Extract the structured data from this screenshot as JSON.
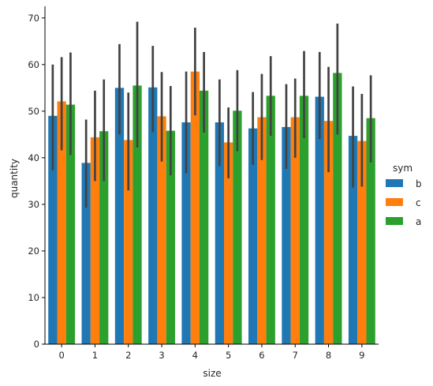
{
  "chart_data": {
    "type": "bar",
    "xlabel": "size",
    "ylabel": "quantity",
    "ylim": [
      0,
      72.5
    ],
    "yticks": [
      0,
      10,
      20,
      30,
      40,
      50,
      60,
      70
    ],
    "categories": [
      "0",
      "1",
      "2",
      "3",
      "4",
      "5",
      "6",
      "7",
      "8",
      "9"
    ],
    "legend": {
      "title": "sym",
      "placement": "right"
    },
    "grid": false,
    "series": [
      {
        "name": "b",
        "color": "#1f77b4",
        "values": [
          49.0,
          38.9,
          55.0,
          55.1,
          47.6,
          47.6,
          46.3,
          46.6,
          53.1,
          44.7
        ],
        "ci": [
          [
            37.3,
            60.0
          ],
          [
            29.3,
            48.2
          ],
          [
            45.0,
            64.4
          ],
          [
            45.5,
            64.0
          ],
          [
            36.7,
            58.5
          ],
          [
            38.2,
            56.8
          ],
          [
            38.5,
            54.1
          ],
          [
            37.6,
            55.8
          ],
          [
            44.0,
            62.7
          ],
          [
            33.6,
            55.3
          ]
        ]
      },
      {
        "name": "c",
        "color": "#ff7f0e",
        "values": [
          52.1,
          44.4,
          43.8,
          48.9,
          58.5,
          43.3,
          48.7,
          48.7,
          47.9,
          43.6
        ],
        "ci": [
          [
            41.6,
            61.6
          ],
          [
            35.0,
            54.4
          ],
          [
            33.0,
            54.0
          ],
          [
            39.2,
            58.4
          ],
          [
            49.1,
            67.9
          ],
          [
            35.6,
            50.8
          ],
          [
            39.5,
            58.0
          ],
          [
            40.0,
            57.0
          ],
          [
            36.9,
            59.5
          ],
          [
            33.8,
            53.7
          ]
        ]
      },
      {
        "name": "a",
        "color": "#2ca02c",
        "values": [
          51.4,
          45.7,
          55.5,
          45.8,
          54.4,
          50.1,
          53.3,
          53.3,
          58.2,
          48.5
        ],
        "ci": [
          [
            40.6,
            62.6
          ],
          [
            35.0,
            56.8
          ],
          [
            42.2,
            69.2
          ],
          [
            36.2,
            55.4
          ],
          [
            45.4,
            62.7
          ],
          [
            41.4,
            58.8
          ],
          [
            44.7,
            61.8
          ],
          [
            44.2,
            62.9
          ],
          [
            45.0,
            68.8
          ],
          [
            39.0,
            57.7
          ]
        ]
      }
    ]
  }
}
